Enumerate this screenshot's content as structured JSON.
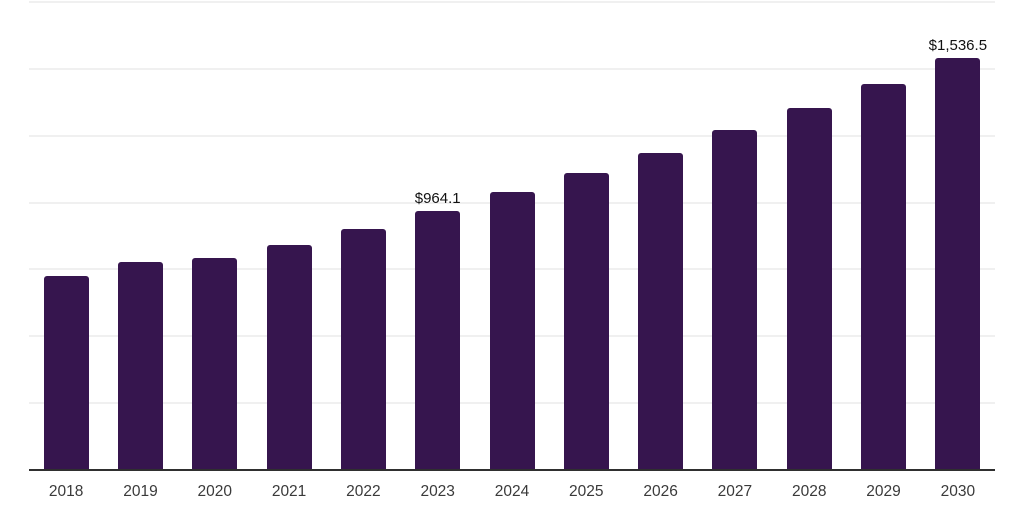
{
  "chart_data": {
    "type": "bar",
    "title": "",
    "xlabel": "",
    "ylabel": "",
    "categories": [
      "2018",
      "2019",
      "2020",
      "2021",
      "2022",
      "2023",
      "2024",
      "2025",
      "2026",
      "2027",
      "2028",
      "2029",
      "2030"
    ],
    "values": [
      723,
      775,
      789,
      838,
      898,
      964.1,
      1037,
      1108,
      1183,
      1269,
      1350,
      1438,
      1536.5
    ],
    "data_labels": {
      "2023": "$964.1",
      "2030": "$1,536.5"
    },
    "ylim": [
      0,
      1750
    ],
    "gridline_step": 250,
    "grid": "horizontal, no y-axis tick labels, no legend",
    "legend_position": "none",
    "colors": {
      "bar_fill": "#36154e",
      "axis_line": "#2f2f2f",
      "gridline": "#f0f0f0",
      "data_label_text": "#111111",
      "tick_label_text": "#3a3a3a",
      "background": "#ffffff"
    }
  }
}
